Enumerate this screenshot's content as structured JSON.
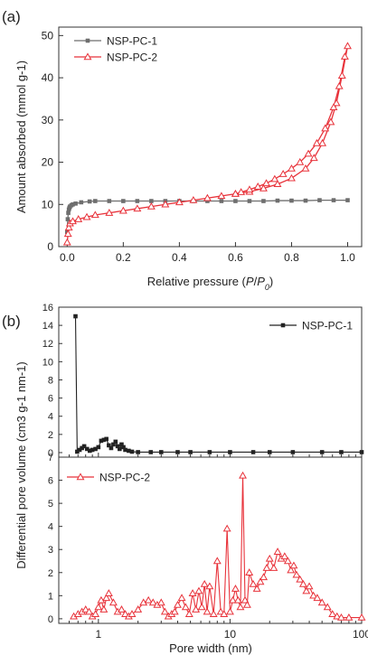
{
  "chart_data": [
    {
      "panel_label": "(a)",
      "type": "line",
      "xlabel": "Relative pressure (P/P0)",
      "xlabel_parts": [
        "Relative pressure (",
        "P",
        "/",
        "P",
        "0",
        ")"
      ],
      "ylabel": "Amount absorbed (mmol g-1)",
      "xlim": [
        -0.03,
        1.05
      ],
      "ylim": [
        0,
        52
      ],
      "xticks": [
        0.0,
        0.2,
        0.4,
        0.6,
        0.8,
        1.0
      ],
      "xtick_labels": [
        "0.0",
        "0.2",
        "0.4",
        "0.6",
        "0.8",
        "1.0"
      ],
      "yticks": [
        0,
        10,
        20,
        30,
        40,
        50
      ],
      "ytick_labels": [
        "0",
        "10",
        "20",
        "30",
        "40",
        "50"
      ],
      "legend": "top-left",
      "grid": false,
      "series": [
        {
          "name": "NSP-PC-1",
          "color": "#6e6e6e",
          "marker": "square",
          "x": [
            0.0,
            0.002,
            0.004,
            0.006,
            0.008,
            0.01,
            0.015,
            0.02,
            0.03,
            0.05,
            0.08,
            0.1,
            0.15,
            0.2,
            0.25,
            0.3,
            0.35,
            0.4,
            0.45,
            0.5,
            0.55,
            0.6,
            0.65,
            0.7,
            0.75,
            0.8,
            0.85,
            0.9,
            0.95,
            1.0
          ],
          "y": [
            3.5,
            6.5,
            8.0,
            8.8,
            9.2,
            9.5,
            9.8,
            10.0,
            10.2,
            10.5,
            10.7,
            10.8,
            10.8,
            10.8,
            10.8,
            10.8,
            10.8,
            10.8,
            10.8,
            10.8,
            10.8,
            10.8,
            10.8,
            10.8,
            10.9,
            10.9,
            10.9,
            11.0,
            11.0,
            11.0
          ]
        },
        {
          "name": "NSP-PC-2",
          "color": "#e8323a",
          "marker": "triangle-open",
          "x": [
            0.0,
            0.003,
            0.006,
            0.01,
            0.02,
            0.04,
            0.07,
            0.1,
            0.15,
            0.2,
            0.25,
            0.3,
            0.35,
            0.4,
            0.45,
            0.5,
            0.55,
            0.6,
            0.65,
            0.7,
            0.75,
            0.8,
            0.85,
            0.88,
            0.91,
            0.94,
            0.96,
            0.98,
            1.0,
            0.99,
            0.97,
            0.95,
            0.92,
            0.89,
            0.86,
            0.83,
            0.8,
            0.77,
            0.74,
            0.71,
            0.68,
            0.65,
            0.62,
            0.6
          ],
          "y": [
            1.0,
            3.0,
            4.5,
            5.5,
            6.0,
            6.5,
            7.0,
            7.5,
            8.0,
            8.5,
            9.0,
            9.5,
            10.0,
            10.5,
            11.0,
            11.5,
            12.0,
            12.5,
            13.0,
            13.8,
            14.8,
            16.2,
            18.5,
            21.0,
            24.5,
            29.5,
            34.0,
            40.5,
            47.5,
            45.0,
            38.0,
            33.0,
            28.0,
            24.5,
            22.0,
            20.0,
            18.5,
            17.2,
            16.0,
            15.0,
            14.2,
            13.5,
            12.9,
            12.5
          ]
        }
      ]
    },
    {
      "panel_label": "(b)",
      "type": "line",
      "xlabel": "Pore width (nm)",
      "ylabel": "Differential pore volume (cm3 g-1 nm-1)",
      "xscale": "log",
      "xlim": [
        0.5,
        100
      ],
      "xticks": [
        1,
        10,
        100
      ],
      "xtick_labels": [
        "1",
        "10",
        "100"
      ],
      "subplots": [
        {
          "ylim": [
            -0.5,
            16
          ],
          "yticks": [
            0,
            2,
            4,
            6,
            8,
            10,
            12,
            14,
            16
          ],
          "ytick_labels": [
            "0",
            "2",
            "4",
            "6",
            "8",
            "10",
            "12",
            "14",
            "16"
          ],
          "legend": "top-right",
          "series": {
            "name": "NSP-PC-1",
            "color": "#222222",
            "marker": "square",
            "x": [
              0.67,
              0.69,
              0.72,
              0.75,
              0.78,
              0.82,
              0.86,
              0.9,
              0.95,
              1.0,
              1.05,
              1.1,
              1.15,
              1.2,
              1.25,
              1.3,
              1.35,
              1.4,
              1.45,
              1.5,
              1.55,
              1.6,
              1.7,
              1.8,
              2.0,
              2.5,
              3,
              4,
              5,
              7,
              10,
              15,
              20,
              30,
              50,
              70,
              100
            ],
            "y": [
              15.0,
              0.1,
              0.3,
              0.5,
              0.7,
              0.4,
              0.2,
              0.3,
              0.4,
              0.6,
              1.3,
              1.4,
              1.5,
              0.8,
              0.5,
              0.9,
              1.2,
              0.7,
              0.4,
              0.9,
              0.6,
              0.3,
              0.2,
              0.1,
              0.05,
              0.05,
              0.05,
              0.05,
              0.05,
              0.05,
              0.05,
              0.05,
              0.05,
              0.05,
              0.05,
              0.05,
              0.05
            ]
          }
        },
        {
          "ylim": [
            -0.2,
            7
          ],
          "yticks": [
            0,
            1,
            2,
            3,
            4,
            5,
            6,
            7
          ],
          "ytick_labels": [
            "0",
            "1",
            "2",
            "3",
            "4",
            "5",
            "6",
            "7"
          ],
          "legend": "top-left",
          "series": {
            "name": "NSP-PC-2",
            "color": "#e8323a",
            "marker": "triangle-open",
            "x": [
              0.65,
              0.7,
              0.75,
              0.8,
              0.85,
              0.9,
              0.95,
              1.0,
              1.05,
              1.1,
              1.15,
              1.2,
              1.3,
              1.4,
              1.5,
              1.6,
              1.7,
              1.8,
              2.0,
              2.2,
              2.4,
              2.6,
              2.8,
              3.0,
              3.2,
              3.4,
              3.6,
              3.8,
              4.0,
              4.3,
              4.6,
              4.9,
              5.2,
              5.5,
              5.8,
              6.1,
              6.4,
              6.7,
              7.0,
              7.5,
              8.0,
              8.5,
              9.0,
              9.5,
              10.0,
              10.5,
              11.0,
              11.5,
              12.0,
              12.5,
              13.0,
              13.5,
              14.0,
              15.0,
              16.0,
              17.0,
              18.0,
              19.0,
              20.0,
              21.5,
              23.0,
              24.5,
              26.0,
              27.5,
              29.0,
              30.5,
              32.0,
              34.0,
              36.0,
              38.0,
              40.0,
              43.0,
              46.0,
              50.0,
              55.0,
              60.0,
              65.0,
              70.0,
              80.0,
              100.0
            ],
            "y": [
              0.1,
              0.2,
              0.3,
              0.4,
              0.3,
              0.1,
              0.2,
              0.5,
              0.8,
              0.4,
              0.9,
              1.1,
              0.7,
              0.3,
              0.4,
              0.2,
              0.1,
              0.2,
              0.4,
              0.7,
              0.8,
              0.7,
              0.6,
              0.7,
              0.3,
              0.1,
              0.2,
              0.3,
              0.6,
              0.9,
              0.5,
              0.2,
              1.1,
              0.4,
              1.2,
              0.5,
              1.5,
              0.3,
              1.4,
              0.2,
              2.5,
              0.3,
              0.2,
              3.9,
              0.3,
              0.8,
              1.3,
              0.8,
              0.5,
              6.2,
              0.8,
              0.6,
              2.0,
              1.5,
              1.3,
              1.6,
              1.8,
              2.2,
              2.6,
              2.2,
              2.9,
              2.6,
              2.7,
              2.5,
              2.1,
              2.3,
              1.9,
              1.7,
              1.5,
              1.2,
              1.4,
              1.0,
              0.9,
              0.7,
              0.5,
              0.2,
              0.1,
              0.05,
              0.05,
              0.05
            ]
          }
        }
      ]
    }
  ]
}
